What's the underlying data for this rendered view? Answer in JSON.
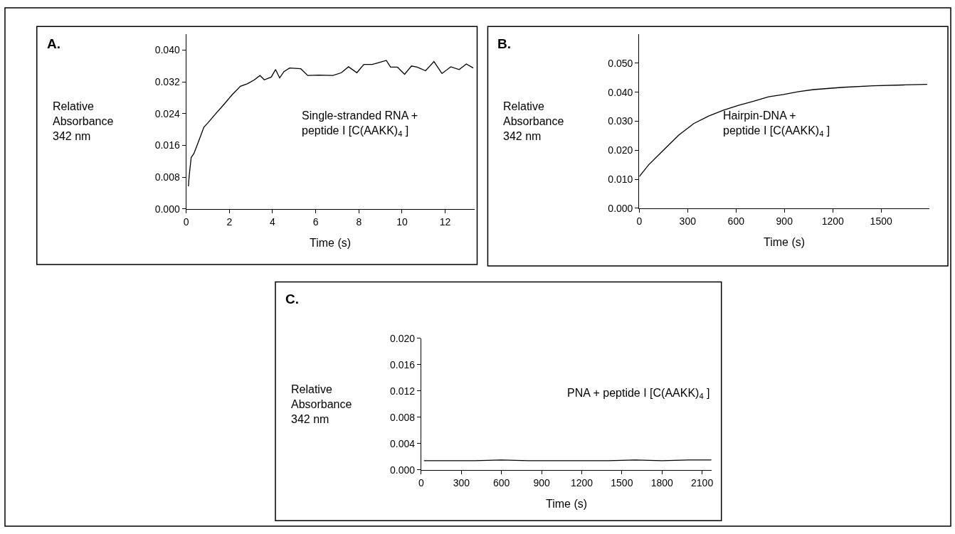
{
  "chart_data": [
    {
      "type": "line",
      "xlabel": "Time (s)",
      "ylabel": "Relative\nAbsorbance\n342 nm",
      "annotations": [
        "A.",
        "Single-stranded RNA +\npeptide I [C(AAKK)$_{4}$ ]"
      ],
      "color": "#000000",
      "x": [
        0.1,
        0.14,
        0.23,
        0.36,
        0.56,
        0.82,
        1.01,
        1.34,
        1.73,
        2.12,
        2.51,
        2.83,
        3.16,
        3.42,
        3.62,
        3.94,
        4.14,
        4.33,
        4.53,
        4.79,
        5.31,
        5.63,
        6.15,
        6.8,
        7.19,
        7.52,
        7.91,
        8.23,
        8.62,
        8.95,
        9.27,
        9.47,
        9.79,
        10.12,
        10.44,
        10.7,
        11.09,
        11.48,
        11.85,
        12.26,
        12.65,
        12.98,
        13.3
      ],
      "values": [
        0.0057,
        0.0084,
        0.0129,
        0.014,
        0.0168,
        0.0206,
        0.0217,
        0.0238,
        0.0262,
        0.0287,
        0.0309,
        0.0315,
        0.0325,
        0.0336,
        0.0325,
        0.0332,
        0.0351,
        0.033,
        0.0346,
        0.0355,
        0.0353,
        0.0336,
        0.0337,
        0.0336,
        0.0343,
        0.0358,
        0.0343,
        0.0364,
        0.0364,
        0.0369,
        0.0374,
        0.0357,
        0.0357,
        0.0339,
        0.036,
        0.0357,
        0.0348,
        0.0371,
        0.0341,
        0.0358,
        0.0351,
        0.0365,
        0.0355
      ],
      "xlim": [
        0,
        13.35
      ],
      "ylim": [
        0,
        0.044
      ],
      "xticks": [
        0,
        2,
        4,
        6,
        8,
        10,
        12
      ],
      "yticks": [
        {
          "value": 0,
          "label": "0.000"
        },
        {
          "value": 0.008,
          "label": "0.008"
        },
        {
          "value": 0.016,
          "label": "0.016"
        },
        {
          "value": 0.024,
          "label": "0.024"
        },
        {
          "value": 0.032,
          "label": "0.032"
        },
        {
          "value": 0.04,
          "label": "0.040"
        }
      ]
    },
    {
      "type": "line",
      "xlabel": "Time (s)",
      "ylabel": "Relative\nAbsorbance\n342 nm",
      "annotations": [
        "B.",
        "Hairpin-DNA +\npeptide I [C(AAKK)$_{4}$ ]"
      ],
      "color": "#000000",
      "x": [
        0,
        59,
        152,
        245,
        338,
        431,
        523,
        616,
        709,
        802,
        895,
        988,
        1080,
        1266,
        1452,
        1637,
        1786
      ],
      "values": [
        0.0109,
        0.015,
        0.0201,
        0.0252,
        0.0292,
        0.0318,
        0.0338,
        0.0355,
        0.0369,
        0.0384,
        0.0392,
        0.0402,
        0.0409,
        0.0417,
        0.0422,
        0.0425,
        0.0427
      ],
      "xlim": [
        0,
        1800
      ],
      "ylim": [
        0,
        0.06
      ],
      "xticks": [
        0,
        300,
        600,
        900,
        1200,
        1500
      ],
      "yticks": [
        {
          "value": 0,
          "label": "0.000"
        },
        {
          "value": 0.01,
          "label": "0.010"
        },
        {
          "value": 0.02,
          "label": "0.020"
        },
        {
          "value": 0.03,
          "label": "0.030"
        },
        {
          "value": 0.04,
          "label": "0.040"
        },
        {
          "value": 0.05,
          "label": "0.050"
        }
      ]
    },
    {
      "type": "line",
      "xlabel": "Time (s)",
      "ylabel": "Relative\nAbsorbance\n342 nm",
      "annotations": [
        "C.",
        "PNA + peptide I [C(AAKK)$_{4}$ ]"
      ],
      "color": "#000000",
      "x": [
        20,
        200,
        400,
        600,
        800,
        1000,
        1200,
        1400,
        1600,
        1800,
        2000,
        2170
      ],
      "values": [
        0.0014,
        0.0014,
        0.0014,
        0.0015,
        0.0014,
        0.0014,
        0.0014,
        0.0014,
        0.0015,
        0.0014,
        0.0015,
        0.0015
      ],
      "xlim": [
        0,
        2170
      ],
      "ylim": [
        0,
        0.02
      ],
      "xticks": [
        0,
        300,
        600,
        900,
        1200,
        1500,
        1800,
        2100
      ],
      "yticks": [
        {
          "value": 0,
          "label": "0.000"
        },
        {
          "value": 0.004,
          "label": "0.004"
        },
        {
          "value": 0.008,
          "label": "0.008"
        },
        {
          "value": 0.012,
          "label": "0.012"
        },
        {
          "value": 0.016,
          "label": "0.016"
        },
        {
          "value": 0.02,
          "label": "0.020"
        }
      ]
    }
  ]
}
